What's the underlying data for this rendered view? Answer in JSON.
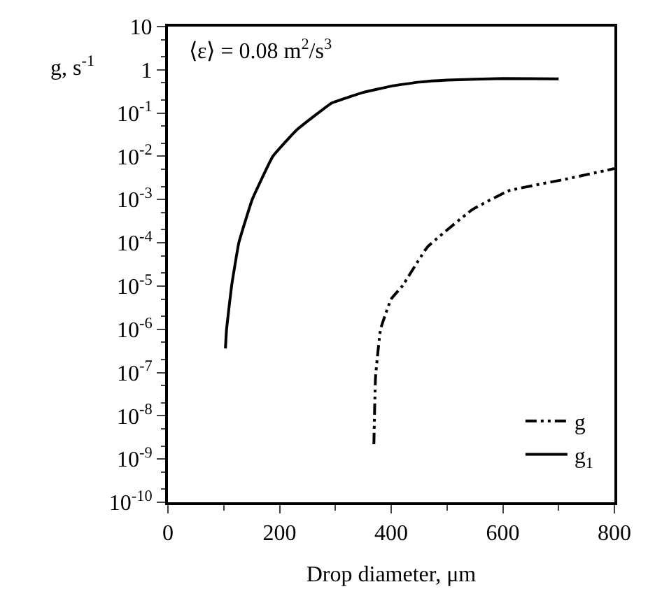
{
  "chart_data": {
    "type": "line",
    "xlabel": "Drop diameter, μm",
    "ylabel": "g, s$^{-1}$",
    "annotations": [
      "⟨ε⟩ = 0.08 m$^{2}$/s$^{3}$"
    ],
    "log": "y",
    "xlim": [
      0,
      800
    ],
    "xticks": [
      0,
      200,
      400,
      600,
      800
    ],
    "ylim": [
      1e-10,
      10
    ],
    "yticks": [
      {
        "value": 10,
        "label": "10"
      },
      {
        "value": 1,
        "label": "1"
      },
      {
        "value": 0.1,
        "label": "10$^{-1}$"
      },
      {
        "value": 0.01,
        "label": "10$^{-2}$"
      },
      {
        "value": 0.001,
        "label": "10$^{-3}$"
      },
      {
        "value": 0.0001,
        "label": "10$^{-4}$"
      },
      {
        "value": 1e-05,
        "label": "10$^{-5}$"
      },
      {
        "value": 1e-06,
        "label": "10$^{-6}$"
      },
      {
        "value": 1e-07,
        "label": "10$^{-7}$"
      },
      {
        "value": 1e-08,
        "label": "10$^{-8}$"
      },
      {
        "value": 1e-09,
        "label": "10$^{-9}$"
      },
      {
        "value": 1e-10,
        "label": "10$^{-10}$"
      }
    ],
    "legend": "bottom right",
    "marker": "none",
    "series": [
      {
        "name": "g",
        "color": "#000000",
        "line_style": "dashdot",
        "x": [
          369,
          372,
          381,
          400,
          420,
          465,
          545,
          611,
          709,
          800
        ],
        "values": [
          2.2e-09,
          8e-08,
          1e-06,
          5e-06,
          1e-05,
          8e-05,
          0.00058,
          0.0016,
          0.0029,
          0.0052
        ]
      },
      {
        "name": "g$_{1}$",
        "color": "#000000",
        "line_style": "solid",
        "x": [
          103,
          105,
          114,
          127,
          151,
          188,
          230,
          269,
          293,
          350,
          400,
          450,
          500,
          600,
          700
        ],
        "values": [
          3.6e-07,
          1e-06,
          1e-05,
          0.0001,
          0.001,
          0.01,
          0.04,
          0.1,
          0.17,
          0.3,
          0.42,
          0.52,
          0.58,
          0.63,
          0.62
        ]
      }
    ]
  }
}
